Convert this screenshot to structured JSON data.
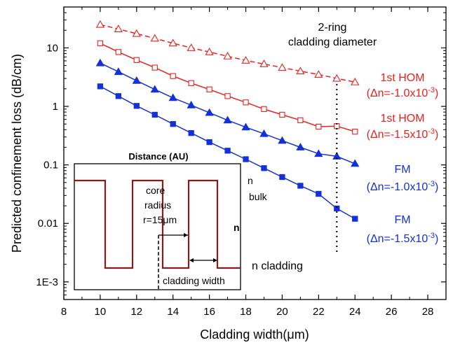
{
  "chart_data": {
    "type": "scatter",
    "title": "",
    "xlabel": "Cladding width(μm)",
    "ylabel": "Predicted confinement loss (dB/cm)",
    "xlim": [
      8,
      29
    ],
    "ylim": [
      0.0005,
      50
    ],
    "yscale": "log",
    "xticks": [
      8,
      10,
      12,
      14,
      16,
      18,
      20,
      22,
      24,
      26,
      28
    ],
    "xtick_labels": [
      "8",
      "10",
      "12",
      "14",
      "16",
      "18",
      "20",
      "22",
      "24",
      "26",
      "28"
    ],
    "yticks": [
      0.001,
      0.01,
      0.1,
      1,
      10
    ],
    "ytick_labels": [
      "1E-3",
      "0.01",
      "0.1",
      "1",
      "10"
    ],
    "series": [
      {
        "name": "1st HOM (Δn=-1.0x10⁻³)",
        "color": "#e8221d",
        "marker": "triangle-open",
        "line": "dashed",
        "x": [
          10,
          11,
          12,
          13,
          14,
          15,
          16,
          17,
          18,
          19,
          20,
          21,
          22,
          23,
          24
        ],
        "y": [
          25,
          21,
          17.5,
          14.5,
          12,
          10,
          8.5,
          7.2,
          6.1,
          5.3,
          4.6,
          4.0,
          3.5,
          3.0,
          2.6
        ]
      },
      {
        "name": "1st HOM (Δn=-1.5x10⁻³)",
        "color": "#e8221d",
        "marker": "square-open",
        "line": "solid",
        "x": [
          10,
          11,
          12,
          13,
          14,
          15,
          16,
          17,
          18,
          19,
          20,
          21,
          22,
          23,
          24
        ],
        "y": [
          12,
          8.5,
          6.2,
          4.6,
          3.3,
          2.5,
          1.95,
          1.5,
          1.17,
          0.9,
          0.72,
          0.58,
          0.45,
          0.46,
          0.37
        ]
      },
      {
        "name": "FM (Δn=-1.0x10⁻³)",
        "color": "#1430d8",
        "marker": "triangle-filled",
        "line": "solid",
        "x": [
          10,
          11,
          12,
          13,
          14,
          15,
          16,
          17,
          18,
          19,
          20,
          21,
          22,
          23,
          24
        ],
        "y": [
          5.5,
          3.9,
          2.75,
          1.95,
          1.4,
          1.05,
          0.78,
          0.58,
          0.44,
          0.34,
          0.26,
          0.2,
          0.155,
          0.14,
          0.105
        ]
      },
      {
        "name": "FM (Δn=-1.5x10⁻³)",
        "color": "#1430d8",
        "marker": "square-filled",
        "line": "solid",
        "x": [
          10,
          11,
          12,
          13,
          14,
          15,
          16,
          17,
          18,
          19,
          20,
          21,
          22,
          23,
          24
        ],
        "y": [
          2.2,
          1.5,
          1.02,
          0.72,
          0.5,
          0.35,
          0.245,
          0.175,
          0.125,
          0.088,
          0.062,
          0.044,
          0.032,
          0.018,
          0.012
        ]
      }
    ],
    "annotations": {
      "ring_label_1": "2-ring",
      "ring_label_2": "cladding diameter",
      "ring_x": 23,
      "labels": [
        {
          "line1": "1st HOM",
          "line2_prefix": "(Δn=-1.0x10",
          "exp": "-3",
          "line2_suffix": ")",
          "color": "#e8221d"
        },
        {
          "line1": "1st HOM",
          "line2_prefix": "(Δn=-1.5x10",
          "exp": "-3",
          "line2_suffix": ")",
          "color": "#e8221d"
        },
        {
          "line1": "FM",
          "line2_prefix": "(Δn=-1.0x10",
          "exp": "-3",
          "line2_suffix": ")",
          "color": "#1430d8"
        },
        {
          "line1": "FM",
          "line2_prefix": "(Δn=-1.5x10",
          "exp": "-3",
          "line2_suffix": ")",
          "color": "#1430d8"
        }
      ]
    },
    "inset": {
      "title": "Distance (AU)",
      "core_line1": "core",
      "core_line2": "radius",
      "core_line3": "r=15μm",
      "n_bulk_1": "n",
      "n_bulk_2": "bulk",
      "n_axis": "n",
      "n_cladding": "n cladding",
      "cladding_width": "cladding width",
      "profile_color": "#8b1a1a"
    }
  }
}
